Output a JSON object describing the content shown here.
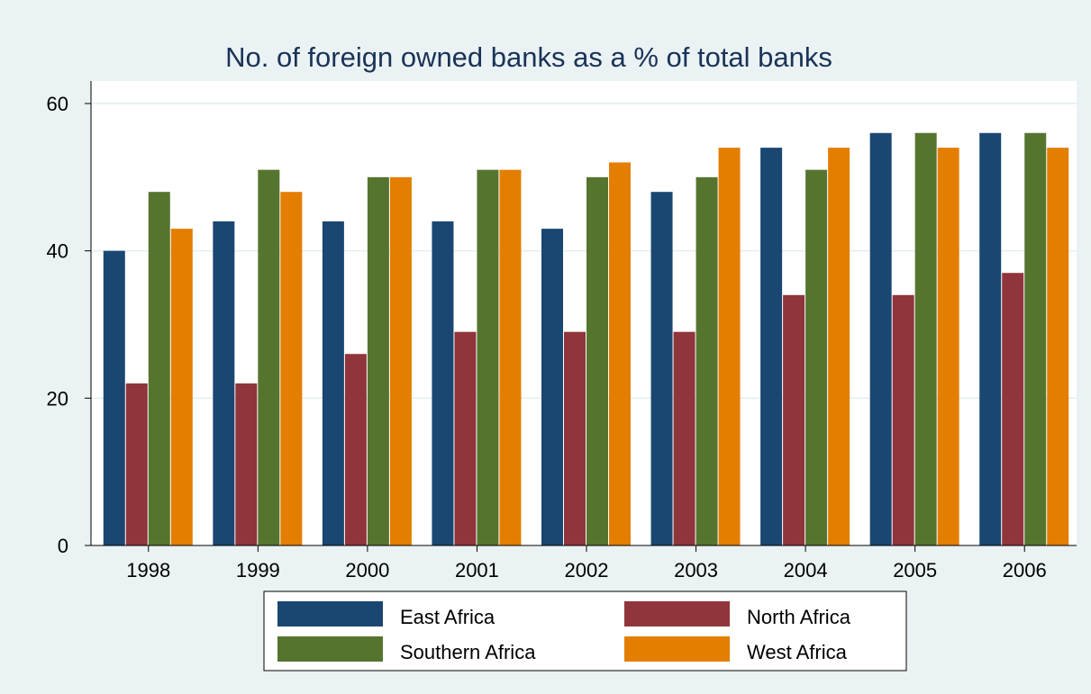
{
  "chart_data": {
    "type": "bar",
    "title": "No. of foreign owned banks as a % of total banks",
    "xlabel": "",
    "ylabel": "",
    "ylim": [
      0,
      60
    ],
    "yticks": [
      "0",
      "20",
      "40",
      "60"
    ],
    "grid": true,
    "legend_placement": "bottom",
    "categories": [
      "1998",
      "1999",
      "2000",
      "2001",
      "2002",
      "2003",
      "2004",
      "2005",
      "2006"
    ],
    "series": [
      {
        "name": "East Africa",
        "color": "#1a4672",
        "values": [
          40,
          44,
          44,
          44,
          43,
          48,
          54,
          56,
          56
        ]
      },
      {
        "name": "North Africa",
        "color": "#90353b",
        "values": [
          22,
          22,
          26,
          29,
          29,
          29,
          34,
          34,
          37
        ]
      },
      {
        "name": "Southern Africa",
        "color": "#55752f",
        "values": [
          48,
          51,
          50,
          51,
          50,
          50,
          51,
          56,
          56
        ]
      },
      {
        "name": "West Africa",
        "color": "#e37e00",
        "values": [
          43,
          48,
          50,
          51,
          52,
          54,
          54,
          54,
          54
        ]
      }
    ]
  }
}
